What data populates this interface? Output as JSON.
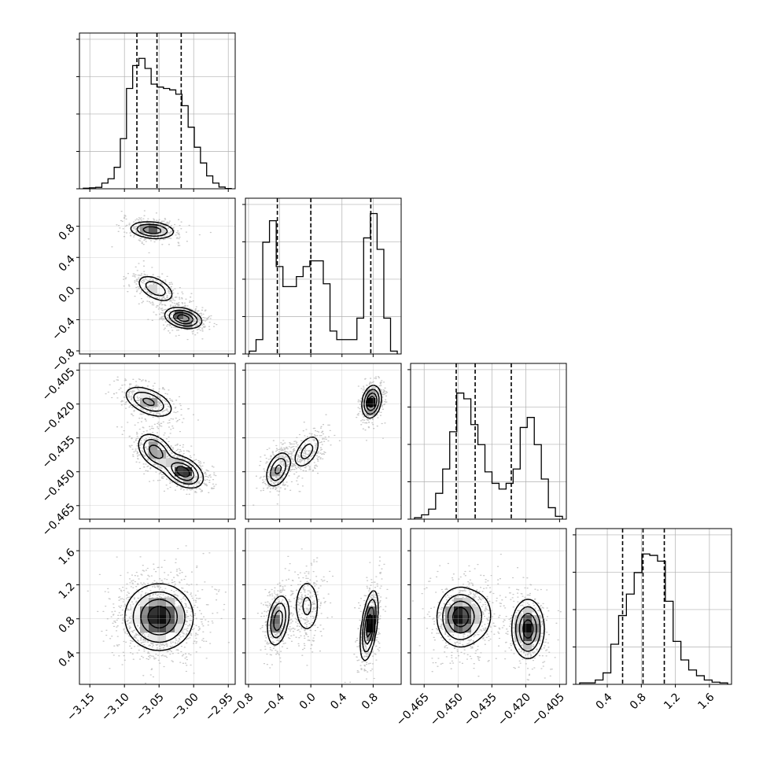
{
  "chart_data": {
    "type": "corner",
    "n_params": 4,
    "grid": true,
    "axis_labels": [
      "",
      "",
      "",
      ""
    ],
    "ranges": [
      [
        -3.165,
        -2.94
      ],
      [
        -0.84,
        1.16
      ],
      [
        -0.471,
        -0.402
      ],
      [
        0.03,
        1.86
      ]
    ],
    "ticks": [
      {
        "values": [
          -3.15,
          -3.1,
          -3.05,
          -3.0,
          -2.95
        ],
        "labels": [
          "−3.15",
          "−3.10",
          "−3.05",
          "−3.00",
          "−2.95"
        ]
      },
      {
        "values": [
          -0.8,
          -0.4,
          0.0,
          0.4,
          0.8
        ],
        "labels": [
          "−0.8",
          "−0.4",
          "0.0",
          "0.4",
          "0.8"
        ]
      },
      {
        "values": [
          -0.465,
          -0.45,
          -0.435,
          -0.42,
          -0.405
        ],
        "labels": [
          "−0.465",
          "−0.450",
          "−0.435",
          "−0.420",
          "−0.405"
        ]
      },
      {
        "values": [
          0.4,
          0.8,
          1.2,
          1.6
        ],
        "labels": [
          "0.4",
          "0.8",
          "1.2",
          "1.6"
        ]
      }
    ],
    "quantiles": [
      [
        -3.082,
        -3.053,
        -3.018
      ],
      [
        -0.43,
        0.0,
        0.77
      ],
      [
        -0.4508,
        -0.4424,
        -0.4264
      ],
      [
        0.58,
        0.82,
        1.07
      ]
    ],
    "histograms": [
      [
        0.004,
        0.007,
        0.01,
        0.04,
        0.07,
        0.15,
        0.35,
        0.7,
        0.86,
        0.91,
        0.84,
        0.73,
        0.71,
        0.7,
        0.69,
        0.66,
        0.58,
        0.43,
        0.29,
        0.18,
        0.09,
        0.04,
        0.012,
        0.002
      ],
      [
        0.02,
        0.1,
        0.78,
        0.93,
        0.61,
        0.47,
        0.47,
        0.54,
        0.61,
        0.65,
        0.65,
        0.49,
        0.16,
        0.1,
        0.1,
        0.1,
        0.25,
        0.81,
        0.98,
        0.73,
        0.25,
        0.02
      ],
      [
        0.01,
        0.03,
        0.07,
        0.18,
        0.35,
        0.61,
        0.88,
        0.84,
        0.66,
        0.52,
        0.33,
        0.25,
        0.21,
        0.25,
        0.35,
        0.64,
        0.71,
        0.52,
        0.28,
        0.08,
        0.02
      ],
      [
        0.01,
        0.01,
        0.03,
        0.08,
        0.28,
        0.48,
        0.63,
        0.78,
        0.91,
        0.9,
        0.86,
        0.58,
        0.3,
        0.17,
        0.1,
        0.06,
        0.03,
        0.015,
        0.01
      ]
    ],
    "panels_2d": [
      {
        "x": 0,
        "y": 1,
        "modes": [
          {
            "mx": -3.06,
            "my": 0.75,
            "sx": 0.016,
            "sy": 0.055,
            "rho": -0.2,
            "w": 0.33
          },
          {
            "mx": -3.055,
            "my": 0.0,
            "sx": 0.014,
            "sy": 0.09,
            "rho": -0.5,
            "w": 0.27
          },
          {
            "mx": -3.015,
            "my": -0.38,
            "sx": 0.013,
            "sy": 0.065,
            "rho": -0.3,
            "w": 0.4
          }
        ]
      },
      {
        "x": 0,
        "y": 2,
        "modes": [
          {
            "mx": -3.065,
            "my": -0.419,
            "sx": 0.018,
            "sy": 0.0035,
            "rho": -0.5,
            "w": 0.3
          },
          {
            "mx": -3.055,
            "my": -0.441,
            "sx": 0.013,
            "sy": 0.004,
            "rho": -0.4,
            "w": 0.3
          },
          {
            "mx": -3.015,
            "my": -0.45,
            "sx": 0.014,
            "sy": 0.0035,
            "rho": -0.4,
            "w": 0.4
          }
        ]
      },
      {
        "x": 1,
        "y": 2,
        "modes": [
          {
            "mx": -0.42,
            "my": -0.449,
            "sx": 0.08,
            "sy": 0.004,
            "rho": 0.4,
            "w": 0.35
          },
          {
            "mx": -0.05,
            "my": -0.441,
            "sx": 0.09,
            "sy": 0.004,
            "rho": 0.5,
            "w": 0.25
          },
          {
            "mx": 0.78,
            "my": -0.419,
            "sx": 0.06,
            "sy": 0.0035,
            "rho": 0.2,
            "w": 0.4
          }
        ]
      },
      {
        "x": 0,
        "y": 3,
        "modes": [
          {
            "mx": -3.05,
            "my": 0.82,
            "sx": 0.024,
            "sy": 0.19,
            "rho": 0.0,
            "w": 1.0
          }
        ]
      },
      {
        "x": 1,
        "y": 3,
        "modes": [
          {
            "mx": -0.42,
            "my": 0.78,
            "sx": 0.07,
            "sy": 0.15,
            "rho": 0.3,
            "w": 0.33
          },
          {
            "mx": -0.05,
            "my": 0.95,
            "sx": 0.09,
            "sy": 0.18,
            "rho": 0.0,
            "w": 0.25
          },
          {
            "mx": 0.75,
            "my": 0.72,
            "sx": 0.055,
            "sy": 0.2,
            "rho": 0.5,
            "w": 0.42
          }
        ]
      },
      {
        "x": 2,
        "y": 3,
        "modes": [
          {
            "mx": -0.449,
            "my": 0.82,
            "sx": 0.005,
            "sy": 0.17,
            "rho": 0.0,
            "w": 0.55
          },
          {
            "mx": -0.439,
            "my": 0.85,
            "sx": 0.004,
            "sy": 0.2,
            "rho": 0.0,
            "w": 0.07
          },
          {
            "mx": -0.419,
            "my": 0.68,
            "sx": 0.0035,
            "sy": 0.17,
            "rho": 0.0,
            "w": 0.38
          }
        ]
      }
    ],
    "colors": {
      "line": "#000000",
      "grid": "#b0b0b0",
      "scatter": "#000000"
    }
  }
}
